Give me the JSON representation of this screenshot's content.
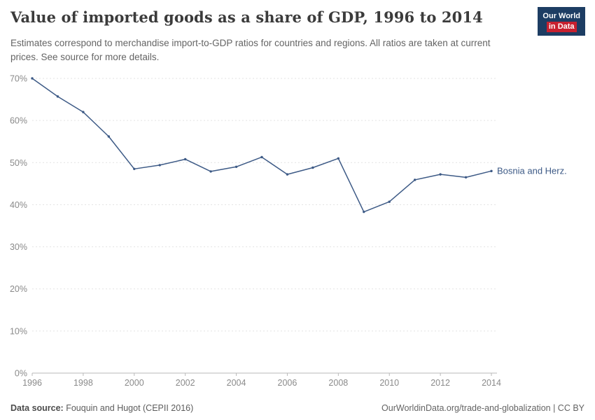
{
  "header": {
    "title": "Value of imported goods as a share of GDP, 1996 to 2014",
    "subtitle": "Estimates correspond to merchandise import-to-GDP ratios for countries and regions. All ratios are taken at current prices. See source for more details.",
    "logo": {
      "line1": "Our World",
      "line2": "in Data",
      "navy": "#1d3d63",
      "red": "#c7202f"
    }
  },
  "footer": {
    "source_label": "Data source:",
    "source_text": "Fouquin and Hugot (CEPII 2016)",
    "credit": "OurWorldinData.org/trade-and-globalization | CC BY"
  },
  "chart_data": {
    "type": "line",
    "title": "Value of imported goods as a share of GDP, 1996 to 2014",
    "xlabel": "",
    "ylabel": "",
    "xlim": [
      1996,
      2014
    ],
    "ylim": [
      0,
      70
    ],
    "y_tick_format": "percent",
    "grid": "dashed-horizontal",
    "legend_position": "end-of-line-label",
    "x_ticks": [
      1996,
      1998,
      2000,
      2002,
      2004,
      2006,
      2008,
      2010,
      2012,
      2014
    ],
    "y_ticks": [
      0,
      10,
      20,
      30,
      40,
      50,
      60,
      70
    ],
    "series": [
      {
        "name": "Bosnia and Herz.",
        "color": "#3d5a86",
        "x": [
          1996,
          1997,
          1998,
          1999,
          2000,
          2001,
          2002,
          2003,
          2004,
          2005,
          2006,
          2007,
          2008,
          2009,
          2010,
          2011,
          2012,
          2013,
          2014
        ],
        "values": [
          70,
          65.7,
          62,
          56.2,
          48.5,
          49.4,
          50.8,
          47.9,
          49,
          51.3,
          47.2,
          48.8,
          51,
          38.3,
          40.7,
          45.9,
          47.2,
          46.5,
          48
        ]
      }
    ]
  }
}
